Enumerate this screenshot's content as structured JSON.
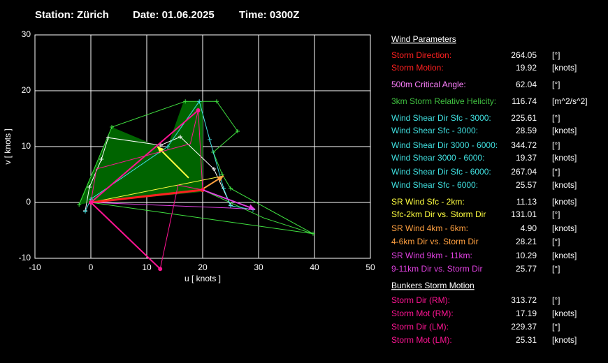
{
  "header": {
    "station": "Station: Zürich",
    "date": "Date: 01.06.2025",
    "time": "Time: 0300Z"
  },
  "chart_data": {
    "type": "line",
    "xlabel": "u  [ knots ]",
    "ylabel": "v  [ knots ]",
    "xlim": [
      -10,
      50
    ],
    "ylim": [
      -10,
      30
    ],
    "xticks": [
      -10,
      0,
      10,
      20,
      30,
      40,
      50
    ],
    "yticks": [
      -10,
      0,
      10,
      20,
      30
    ],
    "grid": true,
    "series": [
      {
        "color": "#006400",
        "fill": true,
        "x": [
          -2.25,
          3.75,
          13.5,
          16.6,
          20,
          20,
          0
        ],
        "values": [
          -0.4,
          13.5,
          9.4,
          18.1,
          18.1,
          1.9,
          0
        ]
      },
      {
        "color": "#40e040",
        "marker": "plus",
        "x": [
          -2.1,
          3.75,
          16.9,
          22.5,
          26.25,
          21.9,
          23.5,
          25,
          39.75,
          0
        ],
        "values": [
          -0.4,
          13.5,
          18.1,
          18.1,
          12.75,
          9,
          5,
          2.5,
          -5.6,
          0
        ]
      },
      {
        "color": "#40e040",
        "x": [
          0,
          20,
          31,
          39.75
        ],
        "values": [
          0,
          2.25,
          -2.8,
          -5.6
        ]
      },
      {
        "color": "#ffffff",
        "marker": "plus",
        "x": [
          -1,
          -0.25,
          1.9,
          3.1,
          12.5,
          16,
          22,
          25
        ],
        "values": [
          -1.5,
          2.75,
          7.75,
          11.6,
          10.25,
          11.75,
          6,
          -0.5
        ]
      },
      {
        "color": "#40e0e0",
        "marker": "plus",
        "x": [
          -1,
          0,
          13.75,
          19.4,
          21.25,
          23.75,
          25,
          29
        ],
        "values": [
          -1.6,
          0.6,
          10,
          18.1,
          11.25,
          2.5,
          -0.6,
          -1.3
        ]
      },
      {
        "color": "#ffff40",
        "x": [
          0,
          23.75
        ],
        "values": [
          0,
          4.75
        ]
      },
      {
        "color": "#ffff40",
        "width": 2,
        "arrow": true,
        "x": [
          17.5,
          11.9
        ],
        "values": [
          4.4,
          10
        ]
      },
      {
        "color": "#ffa040",
        "width": 2,
        "arrow": true,
        "x": [
          19.75,
          23.75
        ],
        "values": [
          2.25,
          4.75
        ]
      },
      {
        "color": "#ff2020",
        "width": 3,
        "marker": "dot",
        "x": [
          0,
          20
        ],
        "values": [
          0,
          2.25
        ]
      },
      {
        "color": "#e040e0",
        "x": [
          0,
          25,
          29.4
        ],
        "values": [
          0,
          -1,
          -1.25
        ]
      },
      {
        "color": "#e040e0",
        "width": 2,
        "arrow": true,
        "x": [
          20,
          29.4
        ],
        "values": [
          2.25,
          -1.25
        ]
      },
      {
        "color": "#ff1493",
        "width": 2,
        "marker": "dot",
        "x": [
          19.2,
          0,
          12.4
        ],
        "values": [
          16.5,
          0,
          -11.9
        ]
      },
      {
        "color": "#ff1493",
        "x": [
          12.4,
          15.6,
          20,
          19.2,
          17.8,
          1,
          0
        ],
        "values": [
          -11.9,
          3.1,
          2.25,
          16.5,
          10.5,
          6,
          0
        ]
      }
    ]
  },
  "panel": {
    "sections": [
      {
        "title": "Wind Parameters",
        "rows": [
          {
            "label": "Storm Direction:",
            "value": "264.05",
            "unit": "[°]",
            "color": "#ff2020"
          },
          {
            "label": "Storm Motion:",
            "value": "19.92",
            "unit": "[knots]",
            "color": "#ff2020"
          },
          {
            "label": "500m Critical Angle:",
            "value": "62.04",
            "unit": "[°]",
            "color": "#ff80ff"
          },
          {
            "label": "3km Storm Relative Helicity:",
            "value": "116.74",
            "unit": "[m^2/s^2]",
            "color": "#40c040"
          },
          {
            "label": "Wind Shear Dir Sfc - 3000:",
            "value": "225.61",
            "unit": "[°]",
            "color": "#40e0e0"
          },
          {
            "label": "Wind Shear Sfc - 3000:",
            "value": "28.59",
            "unit": "[knots]",
            "color": "#40e0e0"
          },
          {
            "label": "Wind Shear Dir 3000 - 6000:",
            "value": "344.72",
            "unit": "[°]",
            "color": "#40e0e0"
          },
          {
            "label": "Wind Shear 3000 - 6000:",
            "value": "19.37",
            "unit": "[knots]",
            "color": "#40e0e0"
          },
          {
            "label": "Wind Shear Dir Sfc - 6000:",
            "value": "267.04",
            "unit": "[°]",
            "color": "#40e0e0"
          },
          {
            "label": "Wind Shear Sfc - 6000:",
            "value": "25.57",
            "unit": "[knots]",
            "color": "#40e0e0"
          },
          {
            "label": "SR Wind Sfc - 2km:",
            "value": "11.13",
            "unit": "[knots]",
            "color": "#ffff40"
          },
          {
            "label": "Sfc-2km Dir vs. Storm Dir",
            "value": "131.01",
            "unit": "[°]",
            "color": "#ffff40"
          },
          {
            "label": "SR Wind 4km - 6km:",
            "value": "4.90",
            "unit": "[knots]",
            "color": "#ffa040"
          },
          {
            "label": "4-6km Dir vs. Storm Dir",
            "value": "28.21",
            "unit": "[°]",
            "color": "#ffa040"
          },
          {
            "label": "SR Wind 9km - 11km:",
            "value": "10.29",
            "unit": "[knots]",
            "color": "#e040e0"
          },
          {
            "label": "9-11km Dir vs. Storm Dir",
            "value": "25.77",
            "unit": "[°]",
            "color": "#e040e0"
          }
        ]
      },
      {
        "title": "Bunkers Storm Motion",
        "rows": [
          {
            "label": "Storm Dir (RM):",
            "value": "313.72",
            "unit": "[°]",
            "color": "#ff1493"
          },
          {
            "label": "Storm Mot (RM):",
            "value": "17.19",
            "unit": "[knots]",
            "color": "#ff1493"
          },
          {
            "label": "Storm Dir (LM):",
            "value": "229.37",
            "unit": "[°]",
            "color": "#ff1493"
          },
          {
            "label": "Storm Mot (LM):",
            "value": "25.31",
            "unit": "[knots]",
            "color": "#ff1493"
          }
        ]
      }
    ]
  }
}
